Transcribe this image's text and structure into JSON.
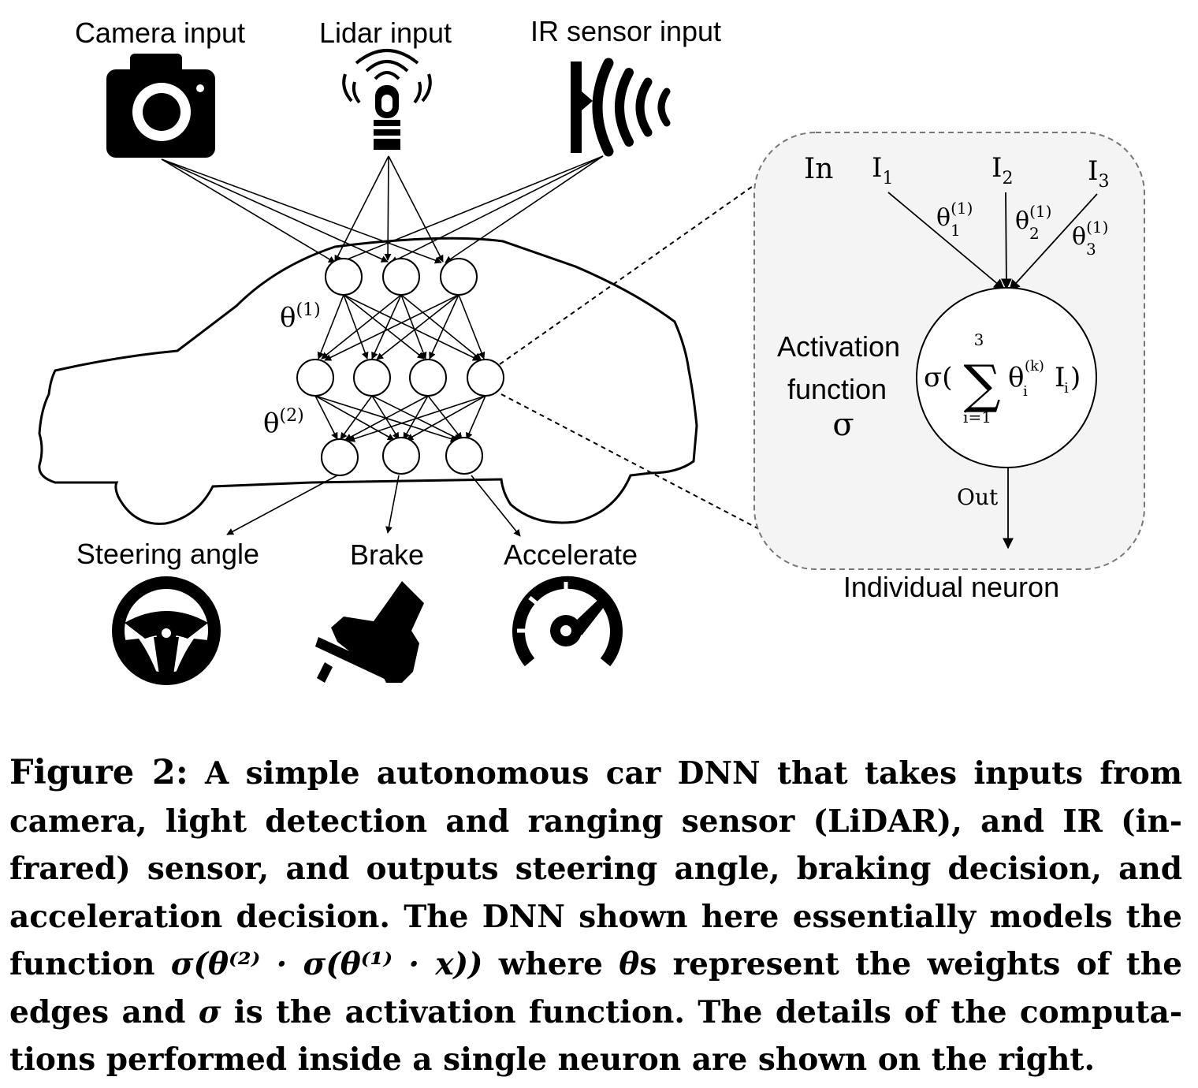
{
  "inputs": {
    "camera": "Camera input",
    "lidar": "Lidar input",
    "ir": "IR sensor input"
  },
  "outputs": {
    "steering": "Steering angle",
    "brake": "Brake",
    "accelerate": "Accelerate"
  },
  "network": {
    "theta1_base": "θ",
    "theta1_sup": "(1)",
    "theta2_base": "θ",
    "theta2_sup": "(2)"
  },
  "neuron": {
    "in_label": "In",
    "i1": "I",
    "i1_sub": "1",
    "i2": "I",
    "i2_sub": "2",
    "i3": "I",
    "i3_sub": "3",
    "w_theta": "θ",
    "w_sup": "(1)",
    "w1_sub": "1",
    "w2_sub": "2",
    "w3_sub": "3",
    "activation_line1": "Activation",
    "activation_line2": "function",
    "sigma": "σ",
    "formula_left": "σ(",
    "sum_top": "3",
    "sum_bottom": "i=1",
    "formula_theta": "θ",
    "formula_theta_sup": "(k)",
    "formula_theta_sub": "i",
    "formula_I": "I",
    "formula_I_sub": "i",
    "formula_right": ")",
    "out_label": "Out",
    "panel_title": "Individual neuron"
  },
  "caption": {
    "label": "Figure 2:",
    "text1": "A simple autonomous car DNN that takes inputs from camera, light detection and ranging sensor (LiDAR), and IR (in-frared) sensor, and outputs steering angle, braking decision, and acceleration decision. The DNN shown here essentially models the function",
    "formula": "σ(θ⁽²⁾ · σ(θ⁽¹⁾ · x))",
    "text2": "where",
    "theta_symbol": "θ",
    "text3": "s represent the weights of the edges and",
    "sigma_symbol": "σ",
    "text4": "is the activation function. The details of the computa-tions performed inside a single neuron are shown on the right."
  }
}
